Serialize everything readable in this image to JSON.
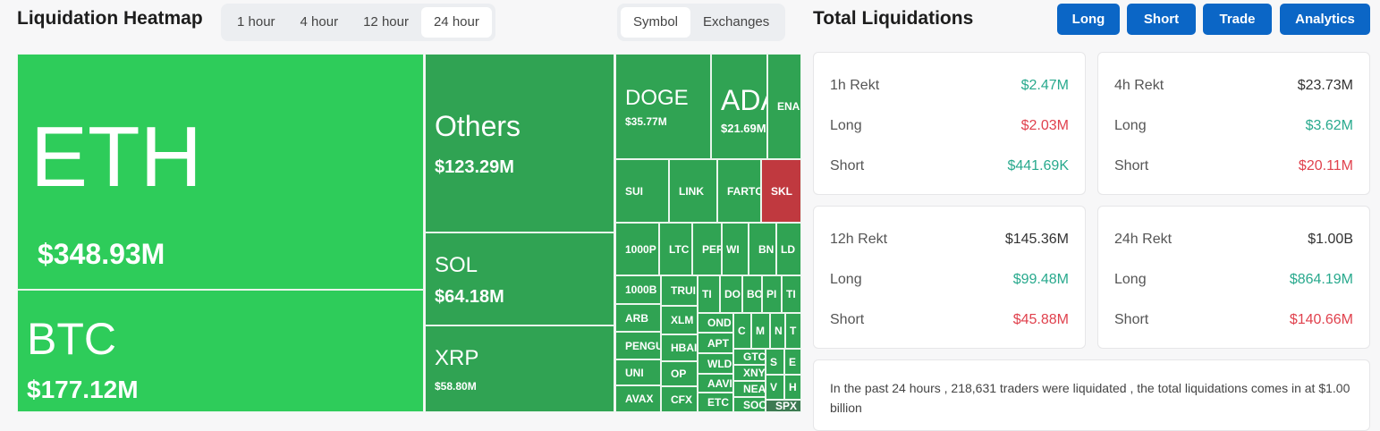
{
  "heatmap": {
    "title": "Liquidation Heatmap",
    "timeframes": [
      "1 hour",
      "4 hour",
      "12 hour",
      "24 hour"
    ],
    "active_timeframe": "24 hour",
    "views": [
      "Symbol",
      "Exchanges"
    ],
    "active_view": "Symbol",
    "tiles": [
      {
        "symbol": "ETH",
        "value": "$348.93M"
      },
      {
        "symbol": "BTC",
        "value": "$177.12M"
      },
      {
        "symbol": "Others",
        "value": "$123.29M"
      },
      {
        "symbol": "SOL",
        "value": "$64.18M"
      },
      {
        "symbol": "XRP",
        "value": "$58.80M"
      },
      {
        "symbol": "DOGE",
        "value": "$35.77M"
      },
      {
        "symbol": "ADA",
        "value": "$21.69M"
      },
      {
        "symbol": "ENA"
      },
      {
        "symbol": "SUI"
      },
      {
        "symbol": "LINK"
      },
      {
        "symbol": "FARTC"
      },
      {
        "symbol": "SKL"
      },
      {
        "symbol": "1000P"
      },
      {
        "symbol": "LTC"
      },
      {
        "symbol": "PER"
      },
      {
        "symbol": "WI"
      },
      {
        "symbol": "BN"
      },
      {
        "symbol": "LD"
      },
      {
        "symbol": "1000B"
      },
      {
        "symbol": "ARB"
      },
      {
        "symbol": "PENGU"
      },
      {
        "symbol": "UNI"
      },
      {
        "symbol": "AVAX"
      },
      {
        "symbol": "TRUI"
      },
      {
        "symbol": "XLM"
      },
      {
        "symbol": "HBAI"
      },
      {
        "symbol": "OP"
      },
      {
        "symbol": "CFX"
      },
      {
        "symbol": "TI"
      },
      {
        "symbol": "DO"
      },
      {
        "symbol": "BO"
      },
      {
        "symbol": "PI"
      },
      {
        "symbol": "TI"
      },
      {
        "symbol": "OND"
      },
      {
        "symbol": "APT"
      },
      {
        "symbol": "WLD"
      },
      {
        "symbol": "AAVI"
      },
      {
        "symbol": "ETC"
      },
      {
        "symbol": "C"
      },
      {
        "symbol": "M"
      },
      {
        "symbol": "N"
      },
      {
        "symbol": "T"
      },
      {
        "symbol": "GTC"
      },
      {
        "symbol": "XNY"
      },
      {
        "symbol": "NEA"
      },
      {
        "symbol": "SOC"
      },
      {
        "symbol": "S"
      },
      {
        "symbol": "E"
      },
      {
        "symbol": "V"
      },
      {
        "symbol": "H"
      },
      {
        "symbol": "SPX"
      }
    ],
    "colors": {
      "top_green": "#2ecc5a",
      "green": "#30a353",
      "red": "#c0393f",
      "dark": "#3d7a52"
    }
  },
  "totals": {
    "title": "Total Liquidations",
    "buttons": [
      "Long",
      "Short",
      "Trade",
      "Analytics"
    ],
    "cards": [
      {
        "label": "1h Rekt",
        "total": "$2.47M",
        "long_label": "Long",
        "long": "$2.03M",
        "short_label": "Short",
        "short": "$441.69K"
      },
      {
        "label": "4h Rekt",
        "total": "$23.73M",
        "long_label": "Long",
        "long": "$3.62M",
        "short_label": "Short",
        "short": "$20.11M"
      },
      {
        "label": "12h Rekt",
        "total": "$145.36M",
        "long_label": "Long",
        "long": "$99.48M",
        "short_label": "Short",
        "short": "$45.88M"
      },
      {
        "label": "24h Rekt",
        "total": "$1.00B",
        "long_label": "Long",
        "long": "$864.19M",
        "short_label": "Short",
        "short": "$140.66M"
      }
    ],
    "summary": "In the past 24 hours , 218,631 traders were liquidated , the total liquidations comes in at $1.00 billion"
  }
}
